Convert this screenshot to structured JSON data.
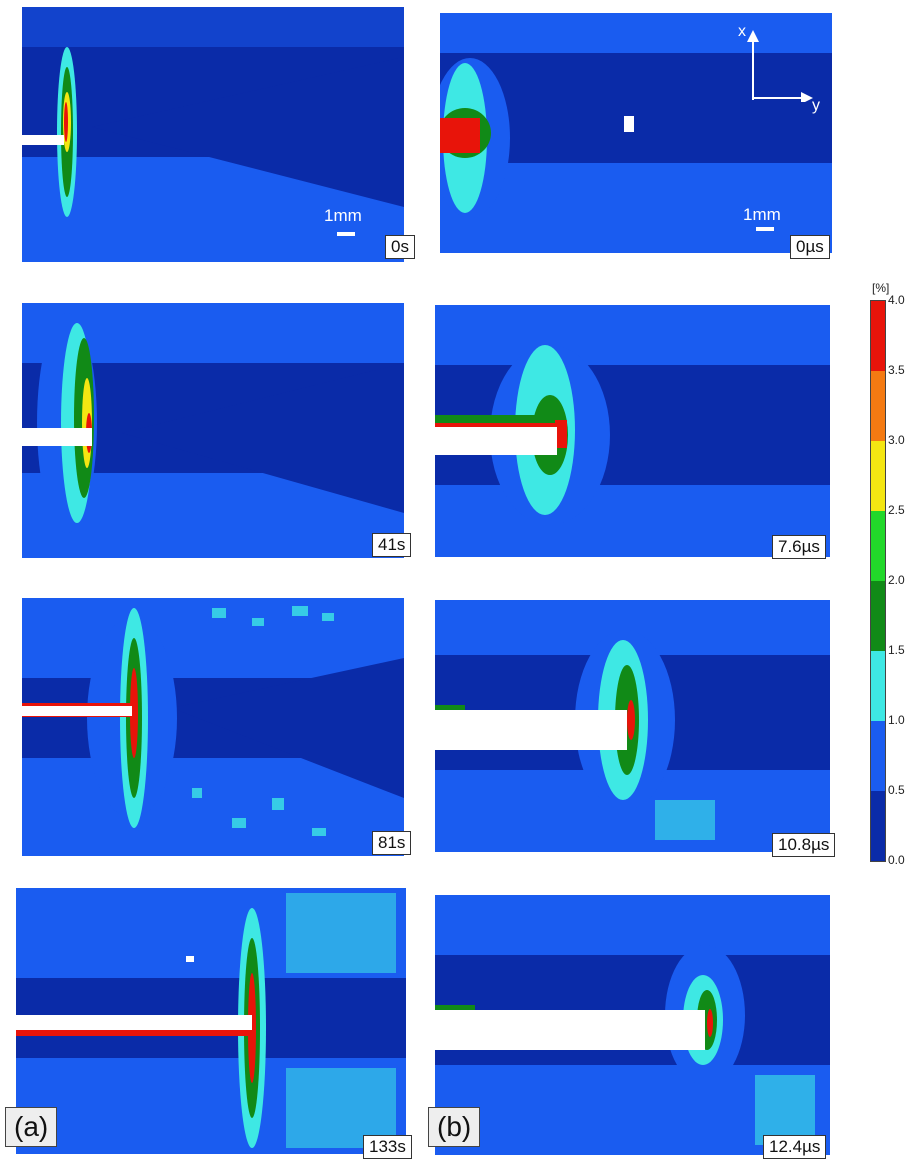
{
  "columns": [
    {
      "label": "(a)",
      "frames": [
        "0s",
        "41s",
        "81s",
        "133s"
      ]
    },
    {
      "label": "(b)",
      "frames": [
        "0µs",
        "7.6µs",
        "10.8µs",
        "12.4µs"
      ]
    }
  ],
  "scale_bar": "1mm",
  "axes": {
    "x": "x",
    "y": "y"
  },
  "colorbar": {
    "unit": "[%]",
    "ticks": [
      "4.0",
      "3.5",
      "3.0",
      "2.5",
      "2.0",
      "1.5",
      "1.0",
      "0.5",
      "0.0"
    ],
    "colors": [
      "#e8140a",
      "#f47a12",
      "#f4e612",
      "#22d82a",
      "#118a17",
      "#3ee8e4",
      "#1a5cf0",
      "#0a2ba8"
    ]
  },
  "strain_map": {
    "colors": {
      "base": "#0a2ba8",
      "low": "#1a5cf0",
      "mid": "#3ee8e4",
      "green": "#118a17",
      "bright_green": "#22d82a",
      "yellow": "#f4e612",
      "red": "#e8140a"
    }
  }
}
